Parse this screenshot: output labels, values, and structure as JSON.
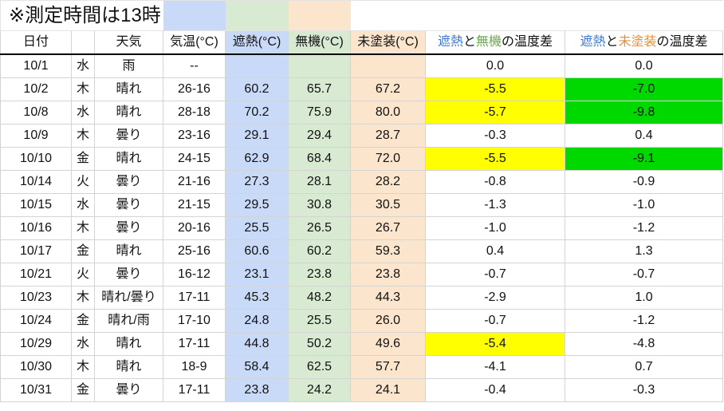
{
  "title": "※測定時間は13時",
  "headers": {
    "date": "日付",
    "weather": "天気",
    "air_temp": "気温(°C)",
    "heat_shield": "遮熱(°C)",
    "inorganic": "無機(°C)",
    "unpainted": "未塗装(°C)",
    "diff1": {
      "a": "遮熱",
      "mid": "と",
      "b": "無機",
      "suffix": "の温度差"
    },
    "diff2": {
      "a": "遮熱",
      "mid": "と",
      "b": "未塗装",
      "suffix": "の温度差"
    }
  },
  "colors": {
    "heat_shield_bg": "#c9daf8",
    "inorganic_bg": "#d9ead3",
    "unpainted_bg": "#fce5cd",
    "highlight_yellow": "#ffff00",
    "highlight_green": "#00d900"
  },
  "rows": [
    {
      "date": "10/1",
      "day": "水",
      "weather": "雨",
      "air": "--",
      "heat": "",
      "inorg": "",
      "unpaint": "",
      "d1": "0.0",
      "d2": "0.0",
      "h1": false,
      "h2": false
    },
    {
      "date": "10/2",
      "day": "木",
      "weather": "晴れ",
      "air": "26-16",
      "heat": "60.2",
      "inorg": "65.7",
      "unpaint": "67.2",
      "d1": "-5.5",
      "d2": "-7.0",
      "h1": true,
      "h2": true
    },
    {
      "date": "10/8",
      "day": "水",
      "weather": "晴れ",
      "air": "28-18",
      "heat": "70.2",
      "inorg": "75.9",
      "unpaint": "80.0",
      "d1": "-5.7",
      "d2": "-9.8",
      "h1": true,
      "h2": true
    },
    {
      "date": "10/9",
      "day": "木",
      "weather": "曇り",
      "air": "23-16",
      "heat": "29.1",
      "inorg": "29.4",
      "unpaint": "28.7",
      "d1": "-0.3",
      "d2": "0.4",
      "h1": false,
      "h2": false
    },
    {
      "date": "10/10",
      "day": "金",
      "weather": "晴れ",
      "air": "24-15",
      "heat": "62.9",
      "inorg": "68.4",
      "unpaint": "72.0",
      "d1": "-5.5",
      "d2": "-9.1",
      "h1": true,
      "h2": true
    },
    {
      "date": "10/14",
      "day": "火",
      "weather": "曇り",
      "air": "21-16",
      "heat": "27.3",
      "inorg": "28.1",
      "unpaint": "28.2",
      "d1": "-0.8",
      "d2": "-0.9",
      "h1": false,
      "h2": false
    },
    {
      "date": "10/15",
      "day": "水",
      "weather": "曇り",
      "air": "21-15",
      "heat": "29.5",
      "inorg": "30.8",
      "unpaint": "30.5",
      "d1": "-1.3",
      "d2": "-1.0",
      "h1": false,
      "h2": false
    },
    {
      "date": "10/16",
      "day": "木",
      "weather": "曇り",
      "air": "20-16",
      "heat": "25.5",
      "inorg": "26.5",
      "unpaint": "26.7",
      "d1": "-1.0",
      "d2": "-1.2",
      "h1": false,
      "h2": false
    },
    {
      "date": "10/17",
      "day": "金",
      "weather": "晴れ",
      "air": "25-16",
      "heat": "60.6",
      "inorg": "60.2",
      "unpaint": "59.3",
      "d1": "0.4",
      "d2": "1.3",
      "h1": false,
      "h2": false
    },
    {
      "date": "10/21",
      "day": "火",
      "weather": "曇り",
      "air": "16-12",
      "heat": "23.1",
      "inorg": "23.8",
      "unpaint": "23.8",
      "d1": "-0.7",
      "d2": "-0.7",
      "h1": false,
      "h2": false
    },
    {
      "date": "10/23",
      "day": "木",
      "weather": "晴れ/曇り",
      "air": "17-11",
      "heat": "45.3",
      "inorg": "48.2",
      "unpaint": "44.3",
      "d1": "-2.9",
      "d2": "1.0",
      "h1": false,
      "h2": false
    },
    {
      "date": "10/24",
      "day": "金",
      "weather": "晴れ/雨",
      "air": "17-10",
      "heat": "24.8",
      "inorg": "25.5",
      "unpaint": "26.0",
      "d1": "-0.7",
      "d2": "-1.2",
      "h1": false,
      "h2": false
    },
    {
      "date": "10/29",
      "day": "水",
      "weather": "晴れ",
      "air": "17-11",
      "heat": "44.8",
      "inorg": "50.2",
      "unpaint": "49.6",
      "d1": "-5.4",
      "d2": "-4.8",
      "h1": true,
      "h2": false
    },
    {
      "date": "10/30",
      "day": "木",
      "weather": "晴れ",
      "air": "18-9",
      "heat": "58.4",
      "inorg": "62.5",
      "unpaint": "57.7",
      "d1": "-4.1",
      "d2": "0.7",
      "h1": false,
      "h2": false
    },
    {
      "date": "10/31",
      "day": "金",
      "weather": "曇り",
      "air": "17-11",
      "heat": "23.8",
      "inorg": "24.2",
      "unpaint": "24.1",
      "d1": "-0.4",
      "d2": "-0.3",
      "h1": false,
      "h2": false
    }
  ]
}
